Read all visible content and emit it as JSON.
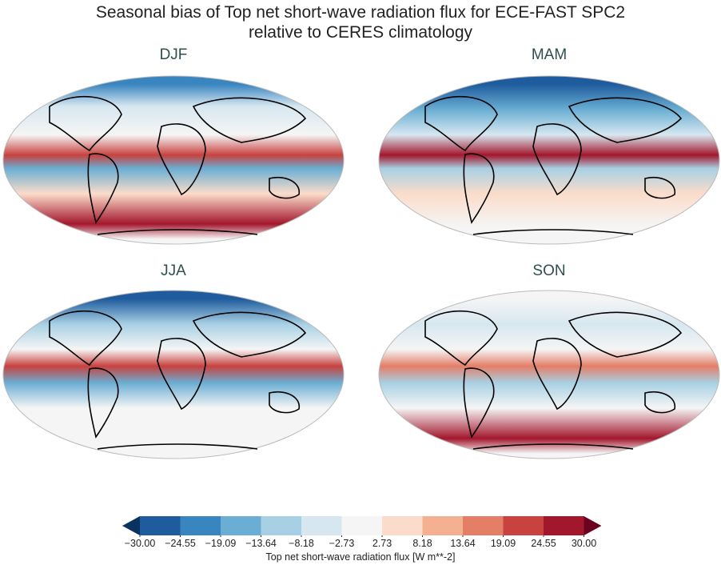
{
  "title_line1": "Seasonal bias of Top net short-wave radiation flux for ECE-FAST SPC2",
  "title_line2": "relative to CERES climatology",
  "panels": [
    {
      "season": "DJF"
    },
    {
      "season": "MAM"
    },
    {
      "season": "JJA"
    },
    {
      "season": "SON"
    }
  ],
  "colorbar": {
    "label": "Top net short-wave radiation flux [W m**-2]",
    "ticks": [
      "−30.00",
      "−24.55",
      "−19.09",
      "−13.64",
      "−8.18",
      "−2.73",
      "2.73",
      "8.18",
      "13.64",
      "19.09",
      "24.55",
      "30.00"
    ],
    "colors": [
      "#1f5c9e",
      "#3985c0",
      "#6aaed3",
      "#a8d0e4",
      "#d7e7f0",
      "#f5f5f5",
      "#fbdcca",
      "#f5b092",
      "#e47e67",
      "#c8423f",
      "#a3172d"
    ],
    "under_color": "#0a3261",
    "over_color": "#6a0320",
    "extend": "both"
  }
}
